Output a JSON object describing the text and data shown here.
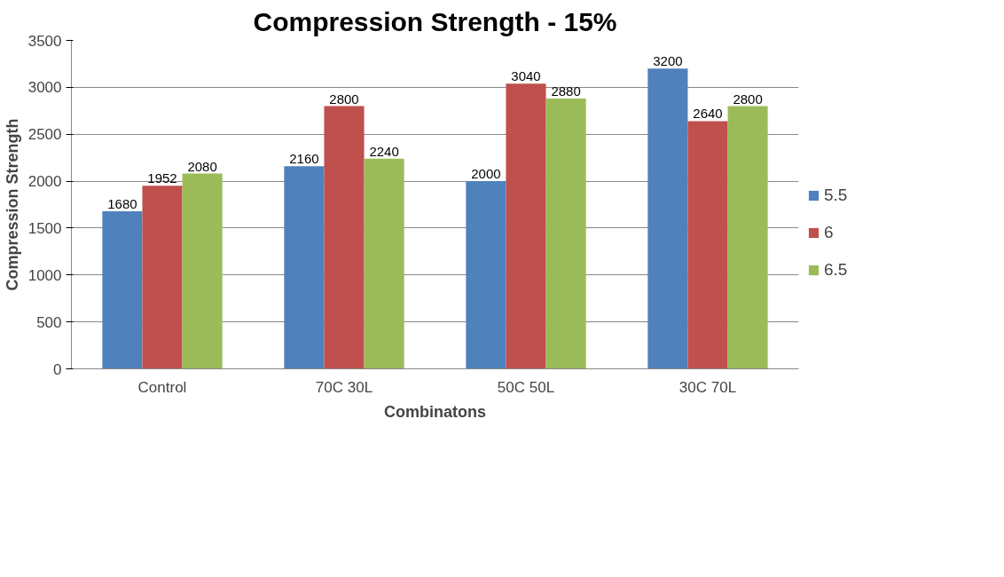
{
  "chart_data": {
    "type": "bar",
    "title": "Compression Strength - 15%",
    "xlabel": "Combinatons",
    "ylabel": "Compression Strength",
    "categories": [
      "Control",
      "70C 30L",
      "50C 50L",
      "30C 70L"
    ],
    "series": [
      {
        "name": "5.5",
        "color": "#4f81bd",
        "values": [
          1680,
          2160,
          2000,
          3200
        ]
      },
      {
        "name": "6",
        "color": "#c0504d",
        "values": [
          1952,
          2800,
          3040,
          2640
        ]
      },
      {
        "name": "6.5",
        "color": "#9bbb59",
        "values": [
          2080,
          2240,
          2880,
          2800
        ]
      }
    ],
    "ylim": [
      0,
      3500
    ],
    "yticks": [
      0,
      500,
      1000,
      1500,
      2000,
      2500,
      3000,
      3500
    ],
    "grid": "y",
    "legend": "right",
    "data_labels": true
  }
}
